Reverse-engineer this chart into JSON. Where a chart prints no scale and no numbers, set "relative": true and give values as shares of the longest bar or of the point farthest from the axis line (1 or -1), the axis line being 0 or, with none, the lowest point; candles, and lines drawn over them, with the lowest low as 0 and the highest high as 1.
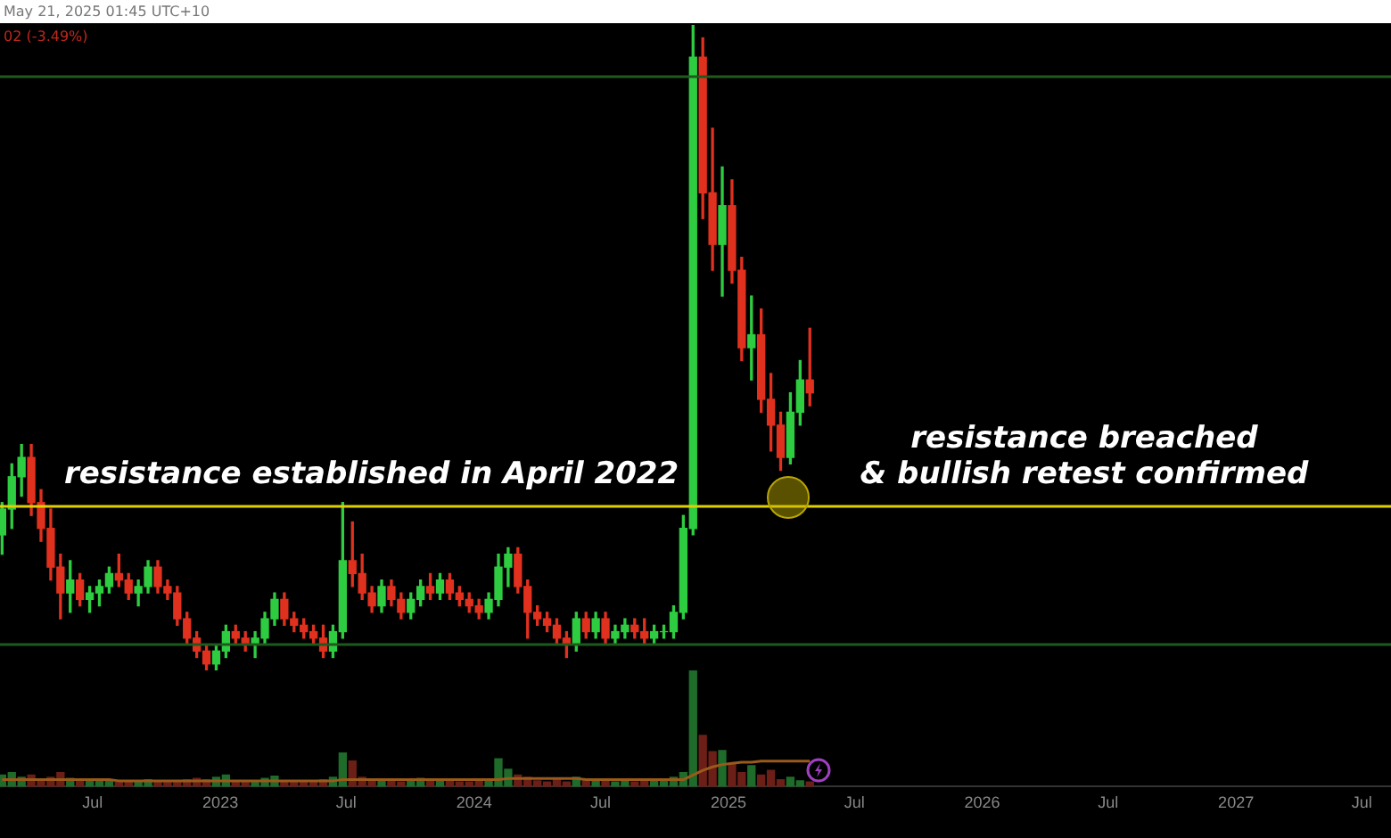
{
  "chart_data": [
    {
      "type": "candlestick",
      "relative": true,
      "annotations": [
        "May 21, 2025 01:45 UTC+10",
        "02 (-3.49%)",
        "resistance established in April 2022",
        "resistance breached\n& bullish retest confirmed"
      ],
      "x": [
        "2022-02-21",
        "2022-03-07",
        "2022-03-21",
        "2022-04-04",
        "2022-04-18",
        "2022-05-02",
        "2022-05-16",
        "2022-05-30",
        "2022-06-13",
        "2022-06-27",
        "2022-07-11",
        "2022-07-25",
        "2022-08-08",
        "2022-08-22",
        "2022-09-05",
        "2022-09-19",
        "2022-10-03",
        "2022-10-17",
        "2022-10-31",
        "2022-11-14",
        "2022-11-28",
        "2022-12-12",
        "2022-12-26",
        "2023-01-09",
        "2023-01-23",
        "2023-02-06",
        "2023-02-20",
        "2023-03-06",
        "2023-03-20",
        "2023-04-03",
        "2023-04-17",
        "2023-05-01",
        "2023-05-15",
        "2023-05-29",
        "2023-06-12",
        "2023-06-26",
        "2023-07-10",
        "2023-07-24",
        "2023-08-07",
        "2023-08-21",
        "2023-09-04",
        "2023-09-18",
        "2023-10-02",
        "2023-10-16",
        "2023-10-30",
        "2023-11-13",
        "2023-11-27",
        "2023-12-11",
        "2023-12-25",
        "2024-01-08",
        "2024-01-22",
        "2024-02-05",
        "2024-02-19",
        "2024-03-04",
        "2024-03-18",
        "2024-04-01",
        "2024-04-15",
        "2024-04-29",
        "2024-05-13",
        "2024-05-27",
        "2024-06-10",
        "2024-06-24",
        "2024-07-08",
        "2024-07-22",
        "2024-08-05",
        "2024-08-19",
        "2024-09-02",
        "2024-09-16",
        "2024-09-30",
        "2024-10-14",
        "2024-10-28",
        "2024-11-11",
        "2024-11-25",
        "2024-12-09",
        "2024-12-23",
        "2025-01-06",
        "2025-01-20",
        "2025-02-03",
        "2025-02-17",
        "2025-03-03",
        "2025-03-17",
        "2025-03-31",
        "2025-04-14",
        "2025-04-28"
      ],
      "ohlc": [
        [
          0.21,
          0.26,
          0.18,
          0.25
        ],
        [
          0.25,
          0.32,
          0.22,
          0.3
        ],
        [
          0.3,
          0.35,
          0.27,
          0.33
        ],
        [
          0.33,
          0.35,
          0.24,
          0.26
        ],
        [
          0.26,
          0.28,
          0.2,
          0.22
        ],
        [
          0.22,
          0.25,
          0.14,
          0.16
        ],
        [
          0.16,
          0.18,
          0.08,
          0.12
        ],
        [
          0.12,
          0.17,
          0.09,
          0.14
        ],
        [
          0.14,
          0.15,
          0.1,
          0.11
        ],
        [
          0.11,
          0.13,
          0.09,
          0.12
        ],
        [
          0.12,
          0.14,
          0.1,
          0.13
        ],
        [
          0.13,
          0.16,
          0.12,
          0.15
        ],
        [
          0.15,
          0.18,
          0.13,
          0.14
        ],
        [
          0.14,
          0.15,
          0.11,
          0.12
        ],
        [
          0.12,
          0.14,
          0.1,
          0.13
        ],
        [
          0.13,
          0.17,
          0.12,
          0.16
        ],
        [
          0.16,
          0.17,
          0.12,
          0.13
        ],
        [
          0.13,
          0.14,
          0.11,
          0.12
        ],
        [
          0.12,
          0.13,
          0.07,
          0.08
        ],
        [
          0.08,
          0.09,
          0.04,
          0.05
        ],
        [
          0.05,
          0.06,
          0.02,
          0.03
        ],
        [
          0.03,
          0.04,
          0.0,
          0.01
        ],
        [
          0.01,
          0.04,
          0.0,
          0.03
        ],
        [
          0.03,
          0.07,
          0.02,
          0.06
        ],
        [
          0.06,
          0.07,
          0.04,
          0.05
        ],
        [
          0.05,
          0.06,
          0.03,
          0.04
        ],
        [
          0.04,
          0.06,
          0.02,
          0.05
        ],
        [
          0.05,
          0.09,
          0.04,
          0.08
        ],
        [
          0.08,
          0.12,
          0.07,
          0.11
        ],
        [
          0.11,
          0.12,
          0.07,
          0.08
        ],
        [
          0.08,
          0.09,
          0.06,
          0.07
        ],
        [
          0.07,
          0.08,
          0.05,
          0.06
        ],
        [
          0.06,
          0.07,
          0.04,
          0.05
        ],
        [
          0.05,
          0.07,
          0.02,
          0.03
        ],
        [
          0.03,
          0.07,
          0.02,
          0.06
        ],
        [
          0.06,
          0.26,
          0.05,
          0.17
        ],
        [
          0.17,
          0.23,
          0.13,
          0.15
        ],
        [
          0.15,
          0.18,
          0.11,
          0.12
        ],
        [
          0.12,
          0.13,
          0.09,
          0.1
        ],
        [
          0.1,
          0.14,
          0.09,
          0.13
        ],
        [
          0.13,
          0.14,
          0.1,
          0.11
        ],
        [
          0.11,
          0.12,
          0.08,
          0.09
        ],
        [
          0.09,
          0.12,
          0.08,
          0.11
        ],
        [
          0.11,
          0.14,
          0.1,
          0.13
        ],
        [
          0.13,
          0.15,
          0.11,
          0.12
        ],
        [
          0.12,
          0.15,
          0.11,
          0.14
        ],
        [
          0.14,
          0.15,
          0.11,
          0.12
        ],
        [
          0.12,
          0.13,
          0.1,
          0.11
        ],
        [
          0.11,
          0.12,
          0.09,
          0.1
        ],
        [
          0.1,
          0.11,
          0.08,
          0.09
        ],
        [
          0.09,
          0.12,
          0.08,
          0.11
        ],
        [
          0.11,
          0.18,
          0.1,
          0.16
        ],
        [
          0.16,
          0.19,
          0.13,
          0.18
        ],
        [
          0.18,
          0.19,
          0.12,
          0.13
        ],
        [
          0.13,
          0.14,
          0.05,
          0.09
        ],
        [
          0.09,
          0.1,
          0.07,
          0.08
        ],
        [
          0.08,
          0.09,
          0.06,
          0.07
        ],
        [
          0.07,
          0.08,
          0.04,
          0.05
        ],
        [
          0.05,
          0.06,
          0.02,
          0.04
        ],
        [
          0.04,
          0.09,
          0.03,
          0.08
        ],
        [
          0.08,
          0.09,
          0.05,
          0.06
        ],
        [
          0.06,
          0.09,
          0.05,
          0.08
        ],
        [
          0.08,
          0.09,
          0.04,
          0.05
        ],
        [
          0.05,
          0.07,
          0.04,
          0.06
        ],
        [
          0.06,
          0.08,
          0.05,
          0.07
        ],
        [
          0.07,
          0.08,
          0.05,
          0.06
        ],
        [
          0.06,
          0.08,
          0.04,
          0.05
        ],
        [
          0.05,
          0.07,
          0.04,
          0.06
        ],
        [
          0.06,
          0.07,
          0.05,
          0.06
        ],
        [
          0.06,
          0.1,
          0.05,
          0.09
        ],
        [
          0.09,
          0.24,
          0.08,
          0.22
        ],
        [
          0.22,
          1.0,
          0.21,
          0.95
        ],
        [
          0.95,
          0.98,
          0.7,
          0.74
        ],
        [
          0.74,
          0.84,
          0.62,
          0.66
        ],
        [
          0.66,
          0.78,
          0.58,
          0.72
        ],
        [
          0.72,
          0.76,
          0.6,
          0.62
        ],
        [
          0.62,
          0.64,
          0.48,
          0.5
        ],
        [
          0.5,
          0.58,
          0.45,
          0.52
        ],
        [
          0.52,
          0.56,
          0.4,
          0.42
        ],
        [
          0.42,
          0.46,
          0.34,
          0.38
        ],
        [
          0.38,
          0.4,
          0.31,
          0.33
        ],
        [
          0.33,
          0.43,
          0.32,
          0.4
        ],
        [
          0.4,
          0.48,
          0.38,
          0.45
        ],
        [
          0.45,
          0.53,
          0.41,
          0.43
        ]
      ],
      "colors": [
        "#2ecc40",
        "#2ecc40",
        "#2ecc40",
        "#e0301e",
        "#e0301e",
        "#e0301e",
        "#e0301e",
        "#2ecc40",
        "#e0301e",
        "#2ecc40",
        "#2ecc40",
        "#2ecc40",
        "#e0301e",
        "#e0301e",
        "#2ecc40",
        "#2ecc40",
        "#e0301e",
        "#e0301e",
        "#e0301e",
        "#e0301e",
        "#e0301e",
        "#e0301e",
        "#2ecc40",
        "#2ecc40",
        "#e0301e",
        "#e0301e",
        "#2ecc40",
        "#2ecc40",
        "#2ecc40",
        "#e0301e",
        "#e0301e",
        "#e0301e",
        "#e0301e",
        "#e0301e",
        "#2ecc40",
        "#2ecc40",
        "#e0301e",
        "#e0301e",
        "#e0301e",
        "#2ecc40",
        "#e0301e",
        "#e0301e",
        "#2ecc40",
        "#2ecc40",
        "#e0301e",
        "#2ecc40",
        "#e0301e",
        "#e0301e",
        "#e0301e",
        "#e0301e",
        "#2ecc40",
        "#2ecc40",
        "#2ecc40",
        "#e0301e",
        "#e0301e",
        "#e0301e",
        "#e0301e",
        "#e0301e",
        "#e0301e",
        "#2ecc40",
        "#e0301e",
        "#2ecc40",
        "#e0301e",
        "#2ecc40",
        "#2ecc40",
        "#e0301e",
        "#e0301e",
        "#2ecc40",
        "#2ecc40",
        "#2ecc40",
        "#2ecc40",
        "#2ecc40",
        "#e0301e",
        "#e0301e",
        "#2ecc40",
        "#e0301e",
        "#e0301e",
        "#2ecc40",
        "#e0301e",
        "#e0301e",
        "#e0301e",
        "#2ecc40",
        "#2ecc40",
        "#e0301e"
      ],
      "ref_lines": [
        {
          "axis": "y",
          "value": 0.254,
          "color": "#e0d000"
        },
        {
          "axis": "y",
          "value": 0.92,
          "color": "#1e5a1e"
        },
        {
          "axis": "y",
          "value": 0.04,
          "color": "#1e5a1e"
        }
      ],
      "xlim": [
        "2022-02-18",
        "2027-08-12"
      ],
      "tick_labels": false
    },
    {
      "type": "bar",
      "relative": true,
      "x": [
        "2022-02-21",
        "2022-03-07",
        "2022-03-21",
        "2022-04-04",
        "2022-04-18",
        "2022-05-02",
        "2022-05-16",
        "2022-05-30",
        "2022-06-13",
        "2022-06-27",
        "2022-07-11",
        "2022-07-25",
        "2022-08-08",
        "2022-08-22",
        "2022-09-05",
        "2022-09-19",
        "2022-10-03",
        "2022-10-17",
        "2022-10-31",
        "2022-11-14",
        "2022-11-28",
        "2022-12-12",
        "2022-12-26",
        "2023-01-09",
        "2023-01-23",
        "2023-02-06",
        "2023-02-20",
        "2023-03-06",
        "2023-03-20",
        "2023-04-03",
        "2023-04-17",
        "2023-05-01",
        "2023-05-15",
        "2023-05-29",
        "2023-06-12",
        "2023-06-26",
        "2023-07-10",
        "2023-07-24",
        "2023-08-07",
        "2023-08-21",
        "2023-09-04",
        "2023-09-18",
        "2023-10-02",
        "2023-10-16",
        "2023-10-30",
        "2023-11-13",
        "2023-11-27",
        "2023-12-11",
        "2023-12-25",
        "2024-01-08",
        "2024-01-22",
        "2024-02-05",
        "2024-02-19",
        "2024-03-04",
        "2024-03-18",
        "2024-04-01",
        "2024-04-15",
        "2024-04-29",
        "2024-05-13",
        "2024-05-27",
        "2024-06-10",
        "2024-06-24",
        "2024-07-08",
        "2024-07-22",
        "2024-08-05",
        "2024-08-19",
        "2024-09-02",
        "2024-09-16",
        "2024-09-30",
        "2024-10-14",
        "2024-10-28",
        "2024-11-11",
        "2024-11-25",
        "2024-12-09",
        "2024-12-23",
        "2025-01-06",
        "2025-01-20",
        "2025-02-03",
        "2025-02-17",
        "2025-03-03",
        "2025-03-17",
        "2025-03-31",
        "2025-04-14",
        "2025-04-28"
      ],
      "series": [
        {
          "colors": [
            "#1f6b2a",
            "#1f6b2a",
            "#1f6b2a",
            "#6b1f17",
            "#6b1f17",
            "#6b1f17",
            "#6b1f17",
            "#1f6b2a",
            "#6b1f17",
            "#1f6b2a",
            "#1f6b2a",
            "#1f6b2a",
            "#6b1f17",
            "#6b1f17",
            "#1f6b2a",
            "#1f6b2a",
            "#6b1f17",
            "#6b1f17",
            "#6b1f17",
            "#6b1f17",
            "#6b1f17",
            "#6b1f17",
            "#1f6b2a",
            "#1f6b2a",
            "#6b1f17",
            "#6b1f17",
            "#1f6b2a",
            "#1f6b2a",
            "#1f6b2a",
            "#6b1f17",
            "#6b1f17",
            "#6b1f17",
            "#6b1f17",
            "#6b1f17",
            "#1f6b2a",
            "#1f6b2a",
            "#6b1f17",
            "#6b1f17",
            "#6b1f17",
            "#1f6b2a",
            "#6b1f17",
            "#6b1f17",
            "#1f6b2a",
            "#1f6b2a",
            "#6b1f17",
            "#1f6b2a",
            "#6b1f17",
            "#6b1f17",
            "#6b1f17",
            "#6b1f17",
            "#1f6b2a",
            "#1f6b2a",
            "#1f6b2a",
            "#6b1f17",
            "#6b1f17",
            "#6b1f17",
            "#6b1f17",
            "#6b1f17",
            "#6b1f17",
            "#1f6b2a",
            "#6b1f17",
            "#1f6b2a",
            "#6b1f17",
            "#1f6b2a",
            "#1f6b2a",
            "#6b1f17",
            "#6b1f17",
            "#1f6b2a",
            "#1f6b2a",
            "#1f6b2a",
            "#1f6b2a",
            "#1f6b2a",
            "#6b1f17",
            "#6b1f17",
            "#1f6b2a",
            "#6b1f17",
            "#6b1f17",
            "#1f6b2a",
            "#6b1f17",
            "#6b1f17",
            "#6b1f17",
            "#1f6b2a",
            "#1f6b2a",
            "#6b1f17"
          ],
          "values": [
            0.1,
            0.12,
            0.08,
            0.1,
            0.06,
            0.08,
            0.12,
            0.07,
            0.05,
            0.06,
            0.05,
            0.06,
            0.04,
            0.05,
            0.04,
            0.06,
            0.05,
            0.04,
            0.05,
            0.06,
            0.07,
            0.06,
            0.08,
            0.1,
            0.05,
            0.04,
            0.05,
            0.07,
            0.09,
            0.05,
            0.04,
            0.05,
            0.04,
            0.06,
            0.08,
            0.29,
            0.22,
            0.08,
            0.05,
            0.06,
            0.05,
            0.04,
            0.06,
            0.07,
            0.05,
            0.06,
            0.05,
            0.04,
            0.04,
            0.05,
            0.06,
            0.24,
            0.15,
            0.1,
            0.08,
            0.05,
            0.04,
            0.06,
            0.04,
            0.08,
            0.05,
            0.06,
            0.05,
            0.04,
            0.05,
            0.04,
            0.05,
            0.06,
            0.05,
            0.08,
            0.12,
            1.0,
            0.44,
            0.3,
            0.31,
            0.2,
            0.12,
            0.18,
            0.1,
            0.14,
            0.06,
            0.08,
            0.05,
            0.04
          ]
        },
        {
          "type": "line",
          "color": "#9a5a1c",
          "values": [
            0.06,
            0.06,
            0.06,
            0.06,
            0.06,
            0.06,
            0.06,
            0.06,
            0.06,
            0.06,
            0.06,
            0.06,
            0.05,
            0.05,
            0.05,
            0.05,
            0.05,
            0.05,
            0.05,
            0.05,
            0.05,
            0.05,
            0.05,
            0.05,
            0.05,
            0.05,
            0.05,
            0.05,
            0.05,
            0.05,
            0.05,
            0.05,
            0.05,
            0.05,
            0.05,
            0.06,
            0.06,
            0.06,
            0.06,
            0.06,
            0.06,
            0.06,
            0.06,
            0.06,
            0.06,
            0.06,
            0.06,
            0.06,
            0.06,
            0.06,
            0.06,
            0.06,
            0.07,
            0.07,
            0.07,
            0.07,
            0.07,
            0.07,
            0.07,
            0.07,
            0.06,
            0.06,
            0.06,
            0.06,
            0.06,
            0.06,
            0.06,
            0.06,
            0.06,
            0.06,
            0.06,
            0.1,
            0.14,
            0.17,
            0.19,
            0.2,
            0.21,
            0.21,
            0.22,
            0.22,
            0.22,
            0.22,
            0.22,
            0.22
          ]
        }
      ],
      "xlim": [
        "2022-02-18",
        "2027-08-12"
      ],
      "xticks": [
        {
          "value": "2022-07-01",
          "label": "Jul"
        },
        {
          "value": "2023-01-01",
          "label": "2023"
        },
        {
          "value": "2023-07-01",
          "label": "Jul"
        },
        {
          "value": "2024-01-01",
          "label": "2024"
        },
        {
          "value": "2024-07-01",
          "label": "Jul"
        },
        {
          "value": "2025-01-01",
          "label": "2025"
        },
        {
          "value": "2025-07-01",
          "label": "Jul"
        },
        {
          "value": "2026-01-01",
          "label": "2026"
        },
        {
          "value": "2026-07-01",
          "label": "Jul"
        },
        {
          "value": "2027-01-01",
          "label": "2027"
        },
        {
          "value": "2027-07-01",
          "label": "Jul"
        }
      ],
      "tick_labels": "x"
    }
  ]
}
